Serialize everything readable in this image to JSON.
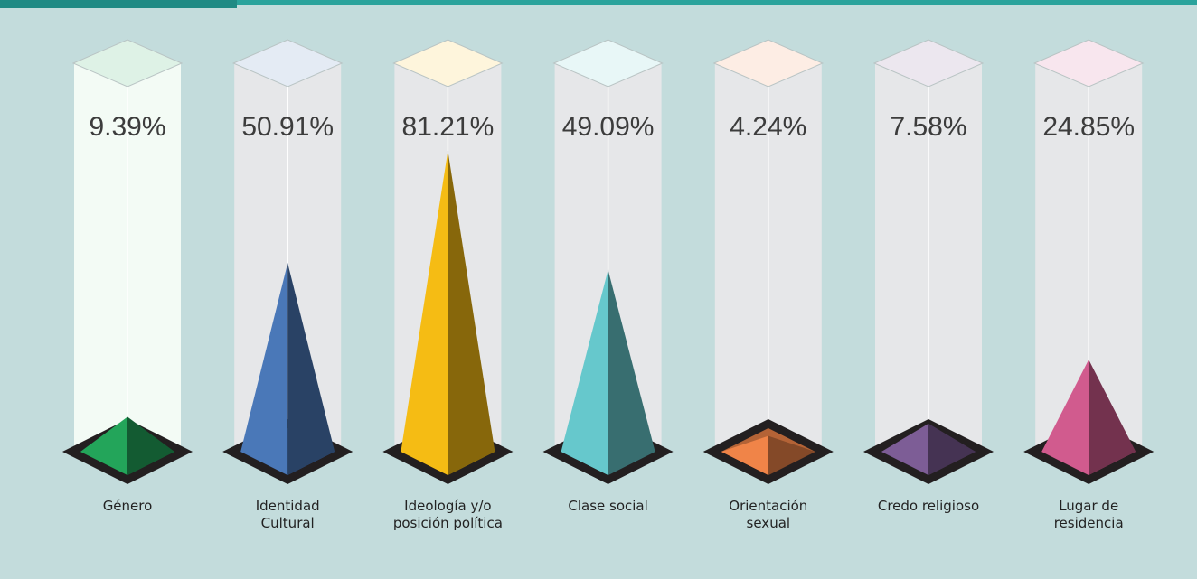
{
  "chart_data": {
    "type": "pyramid",
    "categories": [
      "Género",
      "Identidad Cultural",
      "Ideología y/o posición política",
      "Clase social",
      "Orientación sexual",
      "Credo religioso",
      "Lugar de residencia"
    ],
    "values": [
      9.39,
      50.91,
      81.21,
      49.09,
      4.24,
      7.58,
      24.85
    ],
    "value_labels": [
      "9.39%",
      "50.91%",
      "81.21%",
      "49.09%",
      "4.24%",
      "7.58%",
      "24.85%"
    ],
    "colors": [
      "#23a55a",
      "#4a78b8",
      "#f5bc14",
      "#66c8cc",
      "#f08448",
      "#7d5d96",
      "#d15b8e"
    ],
    "ylim": [
      0,
      100
    ]
  }
}
